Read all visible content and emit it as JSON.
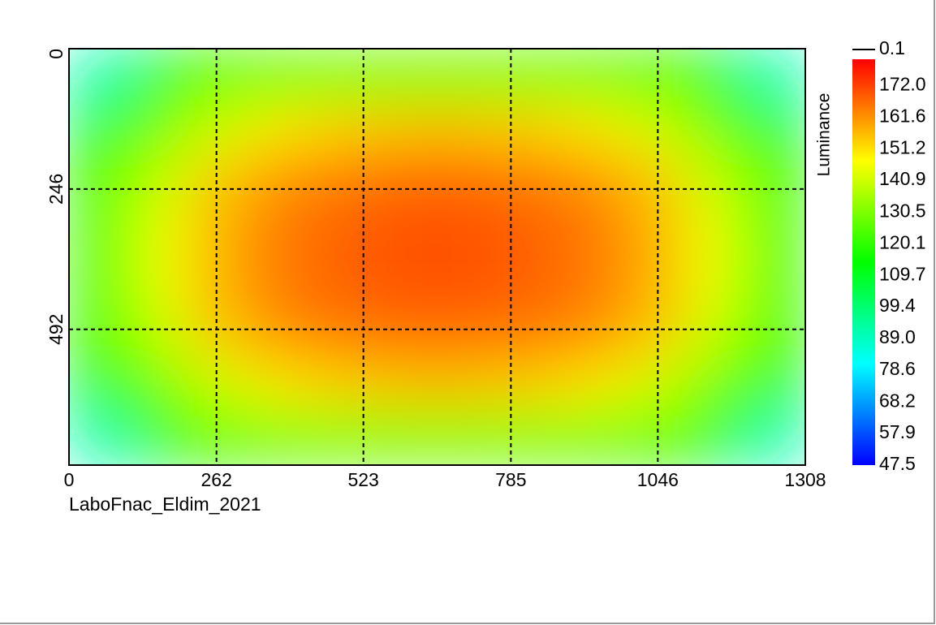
{
  "chart_data": {
    "type": "heatmap",
    "caption": "LaboFnac_Eldim_2021",
    "xlim": [
      0,
      1308
    ],
    "ylim": [
      0,
      730
    ],
    "xticks": [
      0,
      262,
      523,
      785,
      1046,
      1308
    ],
    "yticks": [
      0,
      246,
      492
    ],
    "grid": true,
    "colormap": [
      "#0000ff",
      "#00ffff",
      "#00ff00",
      "#ffff00",
      "#ff0000"
    ],
    "z": [
      [
        90,
        115,
        122,
        125,
        127,
        128,
        128,
        127,
        125,
        122,
        115,
        90
      ],
      [
        115,
        130,
        142,
        150,
        153,
        155,
        155,
        153,
        150,
        142,
        130,
        115
      ],
      [
        120,
        140,
        155,
        162,
        165,
        167,
        167,
        165,
        162,
        155,
        140,
        120
      ],
      [
        122,
        145,
        158,
        165,
        168,
        170,
        170,
        168,
        165,
        158,
        145,
        122
      ],
      [
        122,
        145,
        158,
        165,
        168,
        170,
        170,
        168,
        165,
        158,
        145,
        122
      ],
      [
        120,
        140,
        155,
        162,
        165,
        166,
        166,
        165,
        162,
        155,
        140,
        120
      ],
      [
        115,
        130,
        142,
        150,
        153,
        155,
        155,
        153,
        150,
        142,
        130,
        115
      ],
      [
        90,
        115,
        122,
        125,
        127,
        128,
        128,
        127,
        125,
        122,
        115,
        90
      ]
    ],
    "colorbar": {
      "label": "Luminance",
      "lim": [
        47.5,
        180.6
      ],
      "extra_tick": 0.1,
      "ticks": [
        {
          "value": 172,
          "label": "172.0"
        },
        161.6,
        151.2,
        140.9,
        130.5,
        120.1,
        109.7,
        99.4,
        {
          "value": 89,
          "label": "89.0"
        },
        78.6,
        68.2,
        57.9,
        47.5
      ]
    }
  }
}
